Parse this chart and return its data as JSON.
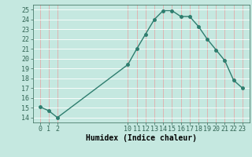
{
  "x": [
    0,
    1,
    2,
    10,
    11,
    12,
    13,
    14,
    15,
    16,
    17,
    18,
    19,
    20,
    21,
    22,
    23
  ],
  "y": [
    15.1,
    14.7,
    14.0,
    19.4,
    21.0,
    22.5,
    24.0,
    24.9,
    24.9,
    24.3,
    24.3,
    23.3,
    22.0,
    20.9,
    19.8,
    17.8,
    17.0
  ],
  "line_color": "#2e7d6e",
  "marker_color": "#2e7d6e",
  "bg_color": "#c5e8e0",
  "grid_color_v": "#e8a0a0",
  "grid_color_h": "#ffffff",
  "xlabel": "Humidex (Indice chaleur)",
  "xlabel_fontsize": 7,
  "ylim": [
    13.5,
    25.5
  ],
  "xlim": [
    -0.8,
    23.8
  ],
  "yticks": [
    14,
    15,
    16,
    17,
    18,
    19,
    20,
    21,
    22,
    23,
    24,
    25
  ],
  "xticks": [
    0,
    1,
    2,
    10,
    11,
    12,
    13,
    14,
    15,
    16,
    17,
    18,
    19,
    20,
    21,
    22,
    23
  ],
  "xtick_labels": [
    "0",
    "1",
    "2",
    "10",
    "11",
    "12",
    "13",
    "14",
    "15",
    "16",
    "17",
    "18",
    "19",
    "20",
    "21",
    "22",
    "23"
  ],
  "tick_fontsize": 6,
  "marker_size": 2.5,
  "line_width": 1.0
}
